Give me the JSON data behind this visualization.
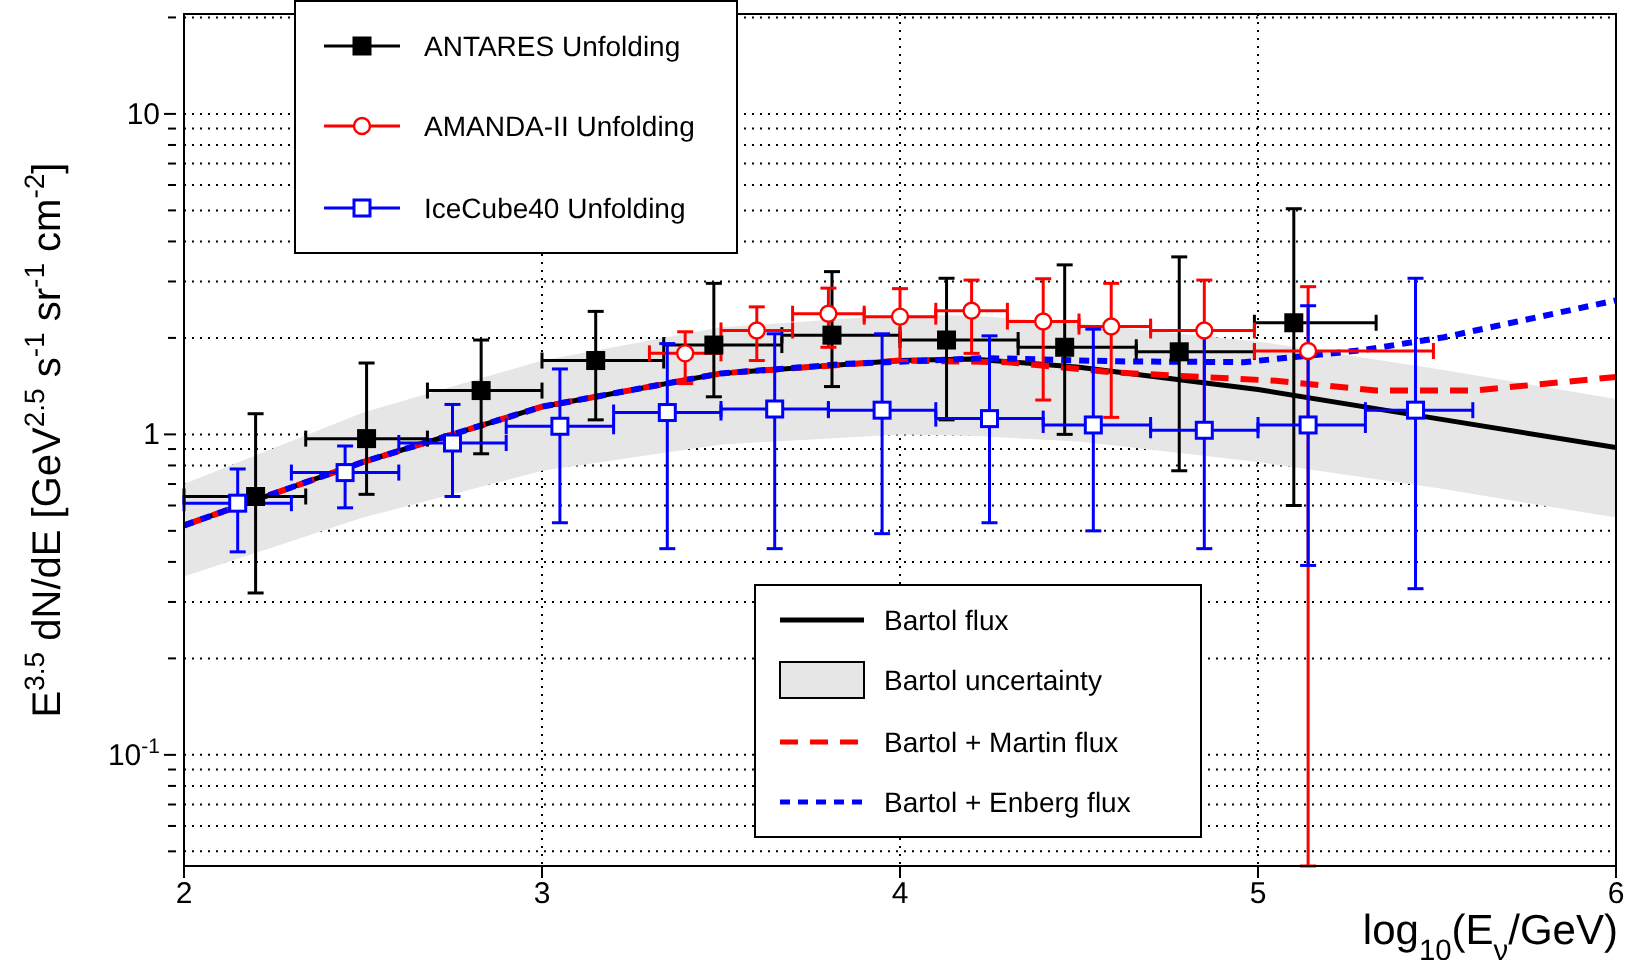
{
  "chart_data": {
    "type": "scatter",
    "xlabel": "log$_{10}$(E$_{ν}$/GeV)",
    "ylabel": "E$^{3.5}$ dN/dE [GeV$^{2.5}$ s$^{-1}$ sr$^{-1}$ cm$^{-2}$]",
    "xlim": [
      2,
      6
    ],
    "xticks": [
      2,
      3,
      4,
      5,
      6
    ],
    "ylim": [
      0.045,
      20.5
    ],
    "yticks": [
      {
        "value": 0.05,
        "label": null
      },
      {
        "value": 0.06,
        "label": null
      },
      {
        "value": 0.07,
        "label": null
      },
      {
        "value": 0.08,
        "label": null
      },
      {
        "value": 0.09,
        "label": null
      },
      {
        "value": 0.1,
        "label": "10$^{-1}$"
      },
      {
        "value": 0.2,
        "label": null
      },
      {
        "value": 0.3,
        "label": null
      },
      {
        "value": 0.4,
        "label": null
      },
      {
        "value": 0.5,
        "label": null
      },
      {
        "value": 0.6,
        "label": null
      },
      {
        "value": 0.7,
        "label": null
      },
      {
        "value": 0.8,
        "label": null
      },
      {
        "value": 0.9,
        "label": null
      },
      1,
      {
        "value": 2,
        "label": null
      },
      {
        "value": 3,
        "label": null
      },
      {
        "value": 4,
        "label": null
      },
      {
        "value": 5,
        "label": null
      },
      {
        "value": 6,
        "label": null
      },
      {
        "value": 7,
        "label": null
      },
      {
        "value": 8,
        "label": null
      },
      {
        "value": 9,
        "label": null
      },
      10,
      {
        "value": 20,
        "label": null
      }
    ],
    "log": "y",
    "grid": true,
    "legend": "top left",
    "annotations": [
      "Bartol uncertainty"
    ],
    "series": [
      {
        "name": "Bartol flux",
        "type": "line",
        "color": "#000000",
        "line_style": "solid",
        "x": [
          2,
          2.5,
          3,
          3.5,
          4,
          4.2,
          4.5,
          5,
          5.5,
          6
        ],
        "values": [
          0.52,
          0.82,
          1.22,
          1.55,
          1.7,
          1.72,
          1.62,
          1.38,
          1.12,
          0.91
        ],
        "lower": [
          0.36,
          0.55,
          0.77,
          0.93,
          1.0,
          0.99,
          0.95,
          0.82,
          0.68,
          0.55
        ],
        "upper": [
          0.7,
          1.17,
          1.7,
          2.16,
          2.36,
          2.35,
          2.22,
          1.95,
          1.6,
          1.29
        ]
      },
      {
        "name": "Bartol + Martin flux",
        "type": "line",
        "color": "#ff0000",
        "line_style": "dashed",
        "x": [
          2,
          2.5,
          3,
          3.5,
          4,
          4.3,
          4.6,
          5.05,
          5.33,
          5.6,
          6
        ],
        "values": [
          0.52,
          0.82,
          1.22,
          1.55,
          1.7,
          1.68,
          1.56,
          1.47,
          1.37,
          1.37,
          1.51
        ]
      },
      {
        "name": "Bartol + Enberg flux",
        "type": "line",
        "color": "#0000ff",
        "line_style": "dotted",
        "x": [
          2,
          2.5,
          3,
          3.5,
          3.85,
          4.24,
          4.61,
          4.96,
          5.29,
          5.52,
          6
        ],
        "values": [
          0.52,
          0.82,
          1.22,
          1.55,
          1.66,
          1.73,
          1.69,
          1.68,
          1.83,
          2.01,
          2.62
        ]
      },
      {
        "name": "ANTARES Unfolding",
        "color": "#000000",
        "marker": "square",
        "x": [
          2.2,
          2.51,
          2.83,
          3.15,
          3.48,
          3.81,
          4.13,
          4.46,
          4.78,
          5.1
        ],
        "values": [
          0.64,
          0.97,
          1.37,
          1.7,
          1.9,
          2.04,
          1.97,
          1.87,
          1.81,
          2.23
        ],
        "errors": [
          [
            0.32,
            1.16
          ],
          [
            0.65,
            1.67
          ],
          [
            0.87,
            1.97
          ],
          [
            1.11,
            2.42
          ],
          [
            1.31,
            2.96
          ],
          [
            1.41,
            3.22
          ],
          [
            1.11,
            3.07
          ],
          [
            1.0,
            3.38
          ],
          [
            0.77,
            3.58
          ],
          [
            0.6,
            5.06
          ]
        ],
        "xerrors": [
          [
            2.0,
            2.34
          ],
          [
            2.34,
            2.68
          ],
          [
            2.68,
            3.0
          ],
          [
            3.0,
            3.34
          ],
          [
            3.34,
            3.67
          ],
          [
            3.67,
            4.0
          ],
          [
            4.0,
            4.33
          ],
          [
            4.33,
            4.66
          ],
          [
            4.66,
            4.99
          ],
          [
            4.99,
            5.33
          ]
        ]
      },
      {
        "name": "AMANDA-II Unfolding",
        "color": "#ff0000",
        "marker": "circle",
        "x": [
          3.4,
          3.6,
          3.8,
          4.0,
          4.2,
          4.4,
          4.59,
          4.85,
          5.14
        ],
        "values": [
          1.79,
          2.11,
          2.38,
          2.33,
          2.43,
          2.25,
          2.17,
          2.11,
          1.82
        ],
        "errors": [
          [
            1.44,
            2.09
          ],
          [
            1.7,
            2.5
          ],
          [
            1.87,
            2.86
          ],
          [
            1.7,
            2.85
          ],
          [
            1.79,
            3.03
          ],
          [
            1.28,
            3.06
          ],
          [
            1.13,
            2.96
          ],
          [
            1.05,
            3.03
          ],
          [
            0.045,
            2.89
          ]
        ],
        "xerrors": [
          [
            3.3,
            3.5
          ],
          [
            3.5,
            3.7
          ],
          [
            3.7,
            3.9
          ],
          [
            3.9,
            4.1
          ],
          [
            4.1,
            4.3
          ],
          [
            4.3,
            4.5
          ],
          [
            4.5,
            4.7
          ],
          [
            4.7,
            4.99
          ],
          [
            4.99,
            5.49
          ]
        ]
      },
      {
        "name": "IceCube40 Unfolding",
        "color": "#0000ff",
        "marker": "square",
        "x": [
          2.15,
          2.45,
          2.75,
          3.05,
          3.35,
          3.65,
          3.95,
          4.25,
          4.54,
          4.85,
          5.14,
          5.44
        ],
        "values": [
          0.61,
          0.76,
          0.94,
          1.06,
          1.17,
          1.2,
          1.19,
          1.12,
          1.07,
          1.03,
          1.07,
          1.19
        ],
        "errors": [
          [
            0.43,
            0.78
          ],
          [
            0.59,
            0.92
          ],
          [
            0.64,
            1.24
          ],
          [
            0.53,
            1.6
          ],
          [
            0.44,
            1.92
          ],
          [
            0.44,
            2.06
          ],
          [
            0.49,
            2.06
          ],
          [
            0.53,
            2.03
          ],
          [
            0.5,
            2.13
          ],
          [
            0.44,
            2.1
          ],
          [
            0.39,
            2.52
          ],
          [
            0.33,
            3.07
          ]
        ],
        "xerrors": [
          [
            2.0,
            2.3
          ],
          [
            2.3,
            2.6
          ],
          [
            2.6,
            2.9
          ],
          [
            2.9,
            3.2
          ],
          [
            3.2,
            3.5
          ],
          [
            3.5,
            3.8
          ],
          [
            3.8,
            4.1
          ],
          [
            4.1,
            4.4
          ],
          [
            4.4,
            4.7
          ],
          [
            4.7,
            5.0
          ],
          [
            5.0,
            5.3
          ],
          [
            5.3,
            5.6
          ]
        ]
      }
    ]
  }
}
